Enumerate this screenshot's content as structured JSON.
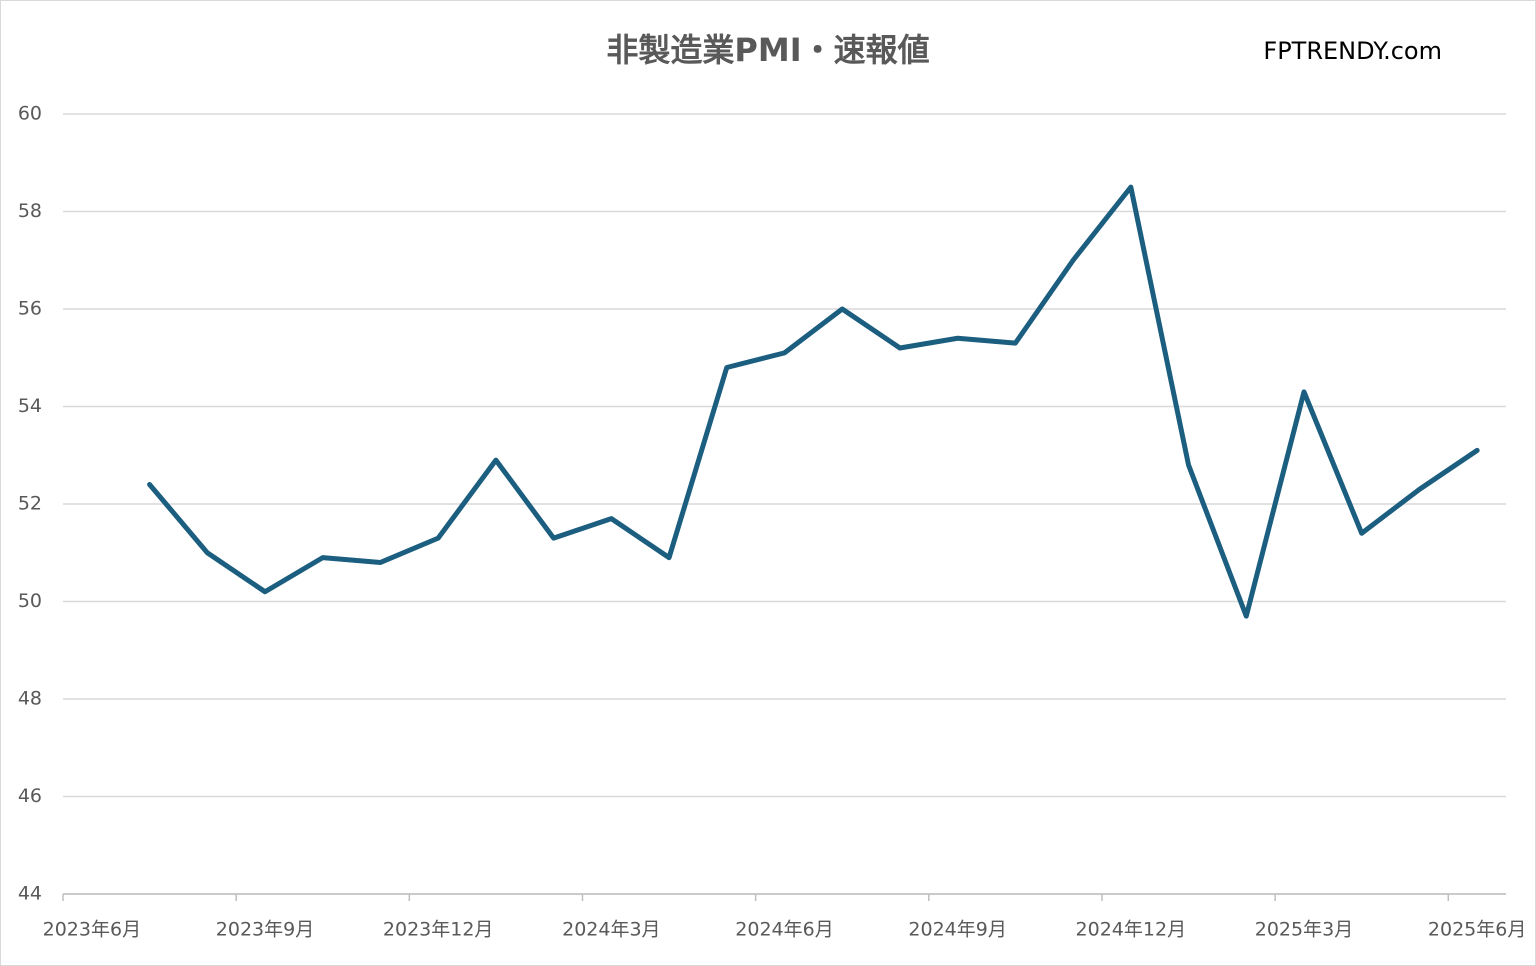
{
  "chart_data": {
    "type": "line",
    "title": "非製造業PMI・速報値",
    "brand": "FPTRENDY.com",
    "x": [
      "2023-07",
      "2023-08",
      "2023-09",
      "2023-10",
      "2023-11",
      "2023-12",
      "2024-01",
      "2024-02",
      "2024-03",
      "2024-04",
      "2024-05",
      "2024-06",
      "2024-07",
      "2024-08",
      "2024-09",
      "2024-10",
      "2024-11",
      "2024-12",
      "2025-01",
      "2025-02",
      "2025-03",
      "2025-04",
      "2025-05",
      "2025-06"
    ],
    "series": [
      {
        "color": "#1b5e80",
        "values": [
          52.4,
          51.0,
          50.2,
          50.9,
          50.8,
          51.3,
          52.9,
          51.3,
          51.7,
          50.9,
          54.8,
          55.1,
          56.0,
          55.2,
          55.4,
          55.3,
          57.0,
          58.5,
          52.8,
          49.7,
          54.3,
          51.4,
          52.3,
          53.1
        ]
      }
    ],
    "xlim": [
      "2023-06",
      "2025-07"
    ],
    "xticks": [
      {
        "value": "2023-06",
        "label": "2023年6月"
      },
      {
        "value": "2023-09",
        "label": "2023年9月"
      },
      {
        "value": "2023-12",
        "label": "2023年12月"
      },
      {
        "value": "2024-03",
        "label": "2024年3月"
      },
      {
        "value": "2024-06",
        "label": "2024年6月"
      },
      {
        "value": "2024-09",
        "label": "2024年9月"
      },
      {
        "value": "2024-12",
        "label": "2024年12月"
      },
      {
        "value": "2025-03",
        "label": "2025年3月"
      },
      {
        "value": "2025-06",
        "label": "2025年6月"
      }
    ],
    "ylim": [
      44,
      60
    ],
    "yticks": [
      44,
      46,
      48,
      50,
      52,
      54,
      56,
      58,
      60
    ],
    "grid": true
  }
}
